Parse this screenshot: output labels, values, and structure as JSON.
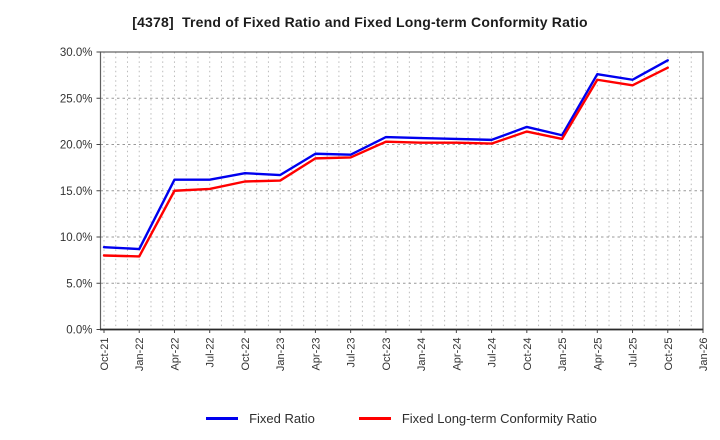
{
  "title": "[4378]  Trend of Fixed Ratio and Fixed Long-term Conformity Ratio",
  "legend": [
    {
      "label": "Fixed Ratio",
      "color": "#0000ee"
    },
    {
      "label": "Fixed Long-term Conformity Ratio",
      "color": "#ff0000"
    }
  ],
  "chart_data": {
    "type": "line",
    "x_labels": [
      "Oct-21",
      "Jan-22",
      "Apr-22",
      "Jul-22",
      "Oct-22",
      "Jan-23",
      "Apr-23",
      "Jul-23",
      "Oct-23",
      "Jan-24",
      "Apr-24",
      "Jul-24",
      "Oct-24",
      "Jan-25",
      "Apr-25",
      "Jul-25",
      "Oct-25",
      "Jan-26"
    ],
    "series": [
      {
        "name": "Fixed Ratio",
        "color": "#0000ee",
        "values": [
          8.9,
          8.7,
          16.2,
          16.2,
          16.9,
          16.7,
          19.0,
          18.9,
          20.8,
          20.7,
          20.6,
          20.5,
          21.9,
          21.0,
          27.6,
          27.0,
          29.1
        ]
      },
      {
        "name": "Fixed Long-term Conformity Ratio",
        "color": "#ff0000",
        "values": [
          8.0,
          7.9,
          15.0,
          15.2,
          16.0,
          16.1,
          18.5,
          18.6,
          20.3,
          20.2,
          20.2,
          20.1,
          21.4,
          20.6,
          27.0,
          26.4,
          28.3
        ]
      }
    ],
    "ylim": [
      0,
      30
    ],
    "ytick_values": [
      0,
      5,
      10,
      15,
      20,
      25,
      30
    ],
    "ytick_labels": [
      "0.0%",
      "5.0%",
      "10.0%",
      "15.0%",
      "20.0%",
      "25.0%",
      "30.0%"
    ],
    "xlabel": "",
    "ylabel": "",
    "grid": "on",
    "minor_x_grid": "monthly",
    "legend_position": "bottom center",
    "colors": {
      "grid_major": "#999999",
      "grid_minor": "#bcbcbc",
      "frame": "#606060",
      "bottom_spine": "#2a2a2a",
      "tick_text": "#333333"
    }
  }
}
